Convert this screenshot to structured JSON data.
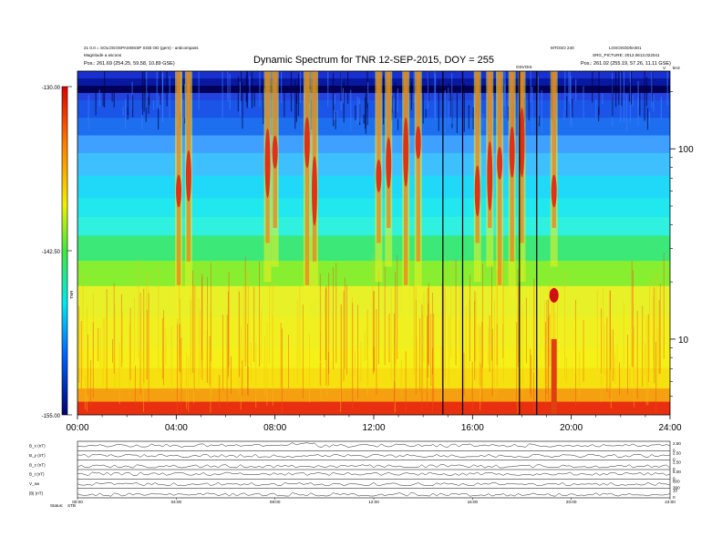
{
  "header": {
    "left_lines": [
      "21 0.0 = SOLOGOSPASWSSP SGB OD (gem) - anticompass",
      "Magnitude a ascoos",
      "Pos.: 261.69 (254.25, 59.58, 10.89 GSE)"
    ],
    "right_lines": [
      "MTOSO 240",
      "SRG_PICTURE: 2013.0613.022041",
      "Pos.: 261.02 (255.19, 57.26, 11.11 GSE)"
    ],
    "right_code": "LOSOSODhe301",
    "corner_marker": "V",
    "corner_marker2": "kHz",
    "event_label": "OSVOIS"
  },
  "chart_data": [
    {
      "type": "heatmap",
      "title": "Dynamic Spectrum for TNR 12-SEP-2015, DOY = 255",
      "x": {
        "ticks": [
          "00:00",
          "04:00",
          "08:00",
          "12:00",
          "16:00",
          "20:00",
          "24:00"
        ],
        "range_hours": [
          0,
          24
        ]
      },
      "y": {
        "scale": "log",
        "unit": "kHz",
        "range": [
          4,
          256
        ],
        "tick_labels": [
          "100",
          "10"
        ],
        "tick_values": [
          100,
          10
        ]
      },
      "colorbar": {
        "label": "TNR",
        "tick_labels": [
          "-130.00",
          "-142.50",
          "-155.00"
        ],
        "range": [
          -155,
          -130
        ]
      },
      "color_bands": [
        {
          "from_khz": 180,
          "to_khz": 256,
          "colors": [
            "#1830cc",
            "#0818a0",
            "#000058",
            "#2244dd"
          ]
        },
        {
          "from_khz": 95,
          "to_khz": 180,
          "colors": [
            "#1a55e8",
            "#1e6ff0",
            "#40a0ff"
          ]
        },
        {
          "from_khz": 55,
          "to_khz": 95,
          "colors": [
            "#3ec0ff",
            "#20d8f8"
          ]
        },
        {
          "from_khz": 35,
          "to_khz": 55,
          "colors": [
            "#20e8ee",
            "#30f0e0"
          ]
        },
        {
          "from_khz": 19,
          "to_khz": 35,
          "colors": [
            "#3ce878",
            "#88ee30"
          ]
        },
        {
          "from_khz": 9,
          "to_khz": 19,
          "colors": [
            "#e8f028",
            "#f0f020"
          ]
        },
        {
          "from_khz": 5.5,
          "to_khz": 9,
          "colors": [
            "#f4f018",
            "#f6e010"
          ]
        },
        {
          "from_khz": 4,
          "to_khz": 5.5,
          "colors": [
            "#f4a010",
            "#e83010"
          ]
        }
      ],
      "bursts_hours": [
        4.1,
        4.5,
        7.7,
        8.0,
        9.3,
        9.6,
        12.2,
        12.6,
        13.3,
        13.8,
        16.2,
        16.7,
        17.1,
        17.6,
        18.0,
        19.3
      ],
      "data_gaps_hours": [
        14.8,
        15.6,
        17.9,
        18.6
      ]
    },
    {
      "type": "line",
      "panels": [
        {
          "name": "B_x (nT)",
          "axis_labels": [
            "2.50",
            "0"
          ]
        },
        {
          "name": "B_y (nT)",
          "axis_labels": [
            "2.50",
            "0"
          ]
        },
        {
          "name": "B_z (nT)",
          "axis_labels": [
            "2.50",
            "0"
          ]
        },
        {
          "name": "B_t (nT)",
          "axis_labels": [
            "5.00",
            "0"
          ]
        },
        {
          "name": "V_sw",
          "axis_labels": [
            "600",
            "300"
          ]
        },
        {
          "name": "|B| (nT)",
          "axis_labels": [
            "10",
            "0"
          ]
        }
      ],
      "x_ticks": [
        "00:00",
        "04:00",
        "08:00",
        "12:00",
        "16:00",
        "20:00",
        "24:00"
      ],
      "footer_label": "Status:",
      "footer_value": "STB"
    }
  ]
}
